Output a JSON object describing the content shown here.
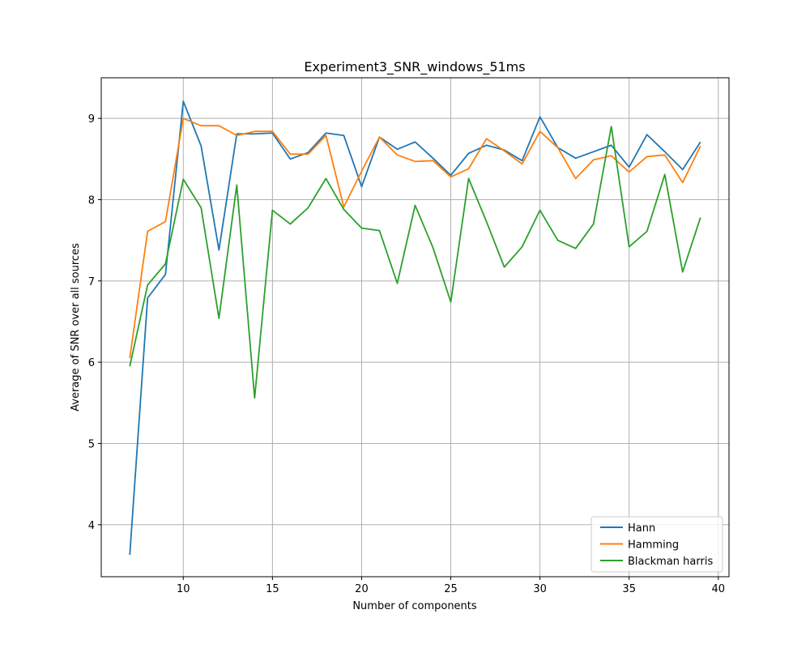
{
  "chart_data": {
    "type": "line",
    "title": "Experiment3_SNR_windows_51ms",
    "xlabel": "Number of components",
    "ylabel": "Average of SNR over all sources",
    "xlim": [
      5.4,
      40.6
    ],
    "ylim": [
      3.36,
      9.5
    ],
    "xticks": [
      10,
      15,
      20,
      25,
      30,
      35,
      40
    ],
    "yticks": [
      4,
      5,
      6,
      7,
      8,
      9
    ],
    "grid": true,
    "legend_position": "lower-right",
    "x": [
      7,
      8,
      9,
      10,
      11,
      12,
      13,
      14,
      15,
      16,
      17,
      18,
      19,
      20,
      21,
      22,
      23,
      24,
      25,
      26,
      27,
      28,
      29,
      30,
      31,
      32,
      33,
      34,
      35,
      36,
      37,
      38,
      39
    ],
    "series": [
      {
        "name": "Hann",
        "color": "#1f77b4",
        "values": [
          3.63,
          6.79,
          7.08,
          9.21,
          8.66,
          7.38,
          8.81,
          8.81,
          8.82,
          8.5,
          8.58,
          8.82,
          8.79,
          8.16,
          8.77,
          8.62,
          8.71,
          8.51,
          8.3,
          8.57,
          8.67,
          8.61,
          8.48,
          9.02,
          8.64,
          8.51,
          8.59,
          8.67,
          8.4,
          8.8,
          8.59,
          8.37,
          8.71
        ]
      },
      {
        "name": "Hamming",
        "color": "#ff7f0e",
        "values": [
          6.05,
          7.61,
          7.73,
          9.0,
          8.91,
          8.91,
          8.79,
          8.84,
          8.84,
          8.56,
          8.56,
          8.79,
          7.91,
          8.35,
          8.77,
          8.55,
          8.47,
          8.48,
          8.28,
          8.38,
          8.75,
          8.6,
          8.44,
          8.84,
          8.64,
          8.26,
          8.49,
          8.54,
          8.34,
          8.53,
          8.55,
          8.21,
          8.66
        ]
      },
      {
        "name": "Blackman harris",
        "color": "#2ca02c",
        "values": [
          5.95,
          6.95,
          7.21,
          8.25,
          7.9,
          6.54,
          8.18,
          5.56,
          7.87,
          7.7,
          7.9,
          8.26,
          7.88,
          7.65,
          7.62,
          6.97,
          7.93,
          7.41,
          6.74,
          8.26,
          7.73,
          7.17,
          7.42,
          7.87,
          7.5,
          7.4,
          7.7,
          8.9,
          7.42,
          7.61,
          8.31,
          7.11,
          7.78
        ]
      }
    ]
  }
}
